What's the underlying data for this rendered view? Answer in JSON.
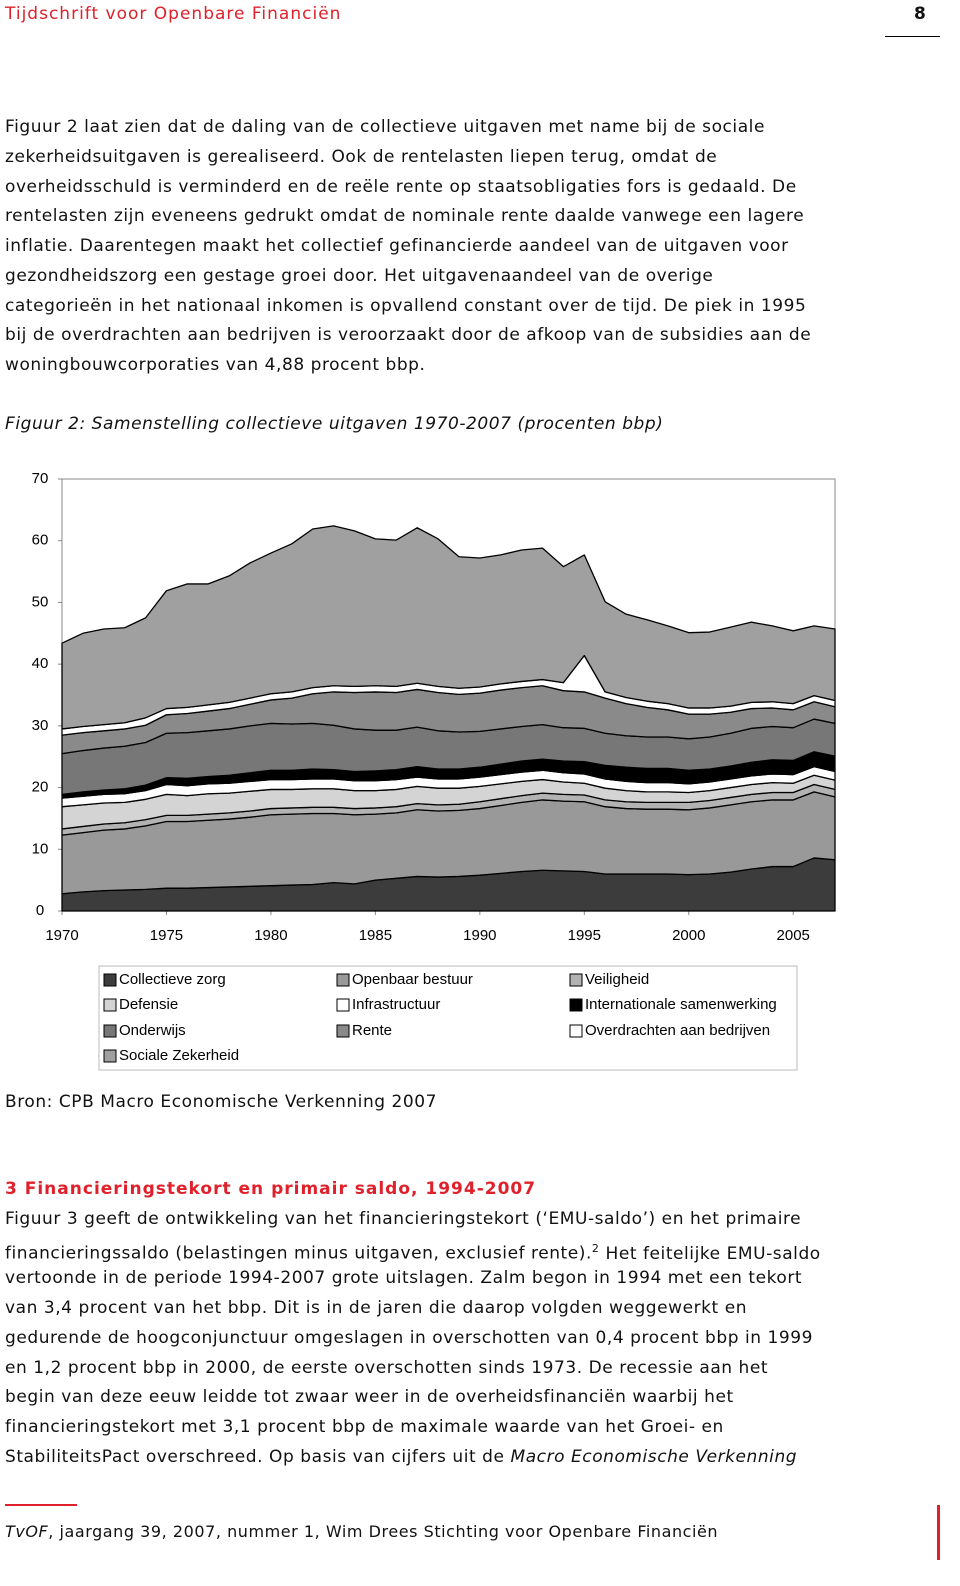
{
  "header": {
    "title": "Tijdschrift voor Openbare Financiën",
    "page": "8"
  },
  "paragraphs": [
    {
      "lines": [
        "Figuur 2 laat zien dat de daling van de collectieve uitgaven met name bij de sociale",
        "zekerheidsuitgaven is gerealiseerd. Ook de rentelasten liepen terug, omdat de",
        "overheidsschuld is verminderd en de reële rente op staatsobligaties fors is gedaald. De",
        "rentelasten zijn eveneens gedrukt omdat de nominale rente daalde vanwege een lagere",
        "inflatie. Daarentegen maakt het collectief gefinancierde aandeel van de uitgaven voor",
        "gezondheidszorg een gestage groei door. Het uitgavenaandeel van de overige",
        "categorieën in het nationaal inkomen is opvallend constant over de tijd. De piek in 1995",
        "bij de overdrachten aan bedrijven is veroorzaakt door de afkoop van de subsidies aan de",
        "woningbouwcorporaties van 4,88 procent bbp."
      ]
    }
  ],
  "figure": {
    "caption": "Figuur 2: Samenstelling collectieve uitgaven 1970-2007 (procenten bbp)",
    "source": "Bron: CPB Macro Economische Verkenning 2007"
  },
  "section": {
    "heading": "3 Financieringstekort en primair saldo, 1994-2007",
    "lines": [
      "Figuur 3 geeft de ontwikkeling van het financieringstekort (‘EMU-saldo’) en het primaire",
      [
        "financieringssaldo (belastingen minus uitgaven, exclusief rente).",
        "2",
        "Het feitelijke EMU-saldo"
      ],
      "vertoonde in de periode 1994-2007 grote uitslagen. Zalm begon in 1994 met een tekort",
      "van 3,4 procent van het bbp. Dit is in de jaren die daarop volgden weggewerkt en",
      "gedurende de hoogconjunctuur omgeslagen in overschotten van 0,4 procent bbp in 1999",
      "en 1,2 procent bbp in 2000, de eerste overschotten sinds 1973. De recessie aan het",
      "begin van deze eeuw leidde tot zwaar weer in de overheidsfinanciën waarbij het",
      "financieringstekort met 3,1 procent bbp de maximale waarde van het Groei- en",
      [
        "StabiliteitsPact overschreed. Op basis van cijfers uit de",
        "Macro Economische Verkenning"
      ]
    ]
  },
  "footer": [
    "TvOF",
    ", jaargang 39, 2007, nummer 1, Wim Drees Stichting voor Openbare Financiën"
  ],
  "chart_data": {
    "type": "stacked-area",
    "x": [
      1970,
      1971,
      1972,
      1973,
      1974,
      1975,
      1976,
      1977,
      1978,
      1979,
      1980,
      1981,
      1982,
      1983,
      1984,
      1985,
      1986,
      1987,
      1988,
      1989,
      1990,
      1991,
      1992,
      1993,
      1994,
      1995,
      1996,
      1997,
      1998,
      1999,
      2000,
      2001,
      2002,
      2003,
      2004,
      2005,
      2006,
      2007
    ],
    "xlim": [
      1970,
      2007
    ],
    "xticks": [
      1970,
      1975,
      1980,
      1985,
      1990,
      1995,
      2000,
      2005
    ],
    "ylim": [
      0,
      70
    ],
    "yticks": [
      0,
      10,
      20,
      30,
      40,
      50,
      60,
      70
    ],
    "series": [
      {
        "name": "Collectieve zorg",
        "color": "#3c3c3c",
        "values": [
          2.8,
          3.1,
          3.3,
          3.4,
          3.5,
          3.7,
          3.7,
          3.8,
          3.9,
          4.0,
          4.1,
          4.2,
          4.3,
          4.6,
          4.4,
          5.0,
          5.3,
          5.6,
          5.5,
          5.6,
          5.8,
          6.1,
          6.4,
          6.6,
          6.5,
          6.4,
          6.0,
          6.0,
          6.0,
          6.0,
          5.9,
          6.0,
          6.3,
          6.8,
          7.2,
          7.2,
          8.6,
          8.3
        ]
      },
      {
        "name": "Openbaar bestuur",
        "color": "#999999",
        "values": [
          9.5,
          9.6,
          9.8,
          9.9,
          10.3,
          10.8,
          10.8,
          10.9,
          11.0,
          11.2,
          11.5,
          11.5,
          11.5,
          11.2,
          11.2,
          10.7,
          10.6,
          10.8,
          10.7,
          10.7,
          10.8,
          11.0,
          11.2,
          11.4,
          11.3,
          11.3,
          10.9,
          10.6,
          10.5,
          10.5,
          10.5,
          10.7,
          10.9,
          10.9,
          10.8,
          10.8,
          10.7,
          10.2
        ]
      },
      {
        "name": "Veiligheid",
        "color": "#b3b3b3",
        "values": [
          1.0,
          1.0,
          1.0,
          1.0,
          1.0,
          1.0,
          1.0,
          1.0,
          1.0,
          1.0,
          1.0,
          1.0,
          1.0,
          1.0,
          1.0,
          1.0,
          1.0,
          1.0,
          1.0,
          1.0,
          1.1,
          1.1,
          1.1,
          1.1,
          1.1,
          1.1,
          1.1,
          1.1,
          1.1,
          1.1,
          1.2,
          1.2,
          1.2,
          1.2,
          1.2,
          1.2,
          1.2,
          1.2
        ]
      },
      {
        "name": "Defensie",
        "color": "#d4d4d4",
        "values": [
          3.6,
          3.5,
          3.4,
          3.3,
          3.3,
          3.4,
          3.2,
          3.3,
          3.2,
          3.2,
          3.1,
          3.0,
          3.0,
          3.0,
          2.9,
          2.8,
          2.8,
          2.8,
          2.7,
          2.6,
          2.5,
          2.4,
          2.3,
          2.2,
          2.0,
          1.9,
          1.9,
          1.8,
          1.7,
          1.7,
          1.6,
          1.6,
          1.6,
          1.6,
          1.6,
          1.5,
          1.5,
          1.5
        ]
      },
      {
        "name": "Infrastructuur",
        "color": "#ffffff",
        "values": [
          1.4,
          1.4,
          1.4,
          1.4,
          1.4,
          1.6,
          1.6,
          1.6,
          1.6,
          1.6,
          1.6,
          1.6,
          1.6,
          1.6,
          1.6,
          1.6,
          1.6,
          1.5,
          1.5,
          1.5,
          1.5,
          1.5,
          1.5,
          1.5,
          1.5,
          1.5,
          1.5,
          1.5,
          1.5,
          1.5,
          1.4,
          1.4,
          1.4,
          1.4,
          1.4,
          1.4,
          1.4,
          1.4
        ]
      },
      {
        "name": "Internationale samenwerking",
        "color": "#000000",
        "values": [
          0.6,
          0.7,
          0.7,
          0.8,
          0.9,
          1.1,
          1.2,
          1.2,
          1.3,
          1.4,
          1.5,
          1.5,
          1.6,
          1.5,
          1.5,
          1.6,
          1.6,
          1.7,
          1.6,
          1.6,
          1.6,
          1.7,
          1.8,
          1.8,
          1.9,
          2.0,
          2.2,
          2.3,
          2.3,
          2.3,
          2.2,
          2.1,
          2.1,
          2.2,
          2.3,
          2.3,
          2.4,
          2.5
        ]
      },
      {
        "name": "Onderwijs",
        "color": "#777777",
        "values": [
          6.6,
          6.7,
          6.8,
          6.9,
          6.9,
          7.2,
          7.4,
          7.4,
          7.5,
          7.6,
          7.6,
          7.5,
          7.4,
          7.2,
          6.9,
          6.6,
          6.4,
          6.4,
          6.2,
          6.0,
          5.8,
          5.7,
          5.6,
          5.6,
          5.4,
          5.4,
          5.2,
          5.1,
          5.1,
          5.1,
          5.1,
          5.2,
          5.3,
          5.5,
          5.4,
          5.3,
          5.3,
          5.3
        ]
      },
      {
        "name": "Rente",
        "color": "#8a8a8a",
        "values": [
          3.0,
          2.9,
          2.8,
          2.8,
          2.8,
          3.0,
          3.1,
          3.2,
          3.3,
          3.5,
          3.8,
          4.2,
          4.8,
          5.4,
          5.9,
          6.2,
          6.1,
          6.1,
          6.2,
          6.1,
          6.2,
          6.3,
          6.3,
          6.3,
          6.0,
          5.9,
          5.7,
          5.2,
          4.8,
          4.4,
          4.0,
          3.7,
          3.4,
          3.2,
          3.0,
          2.9,
          2.8,
          2.7
        ]
      },
      {
        "name": "Overdrachten aan bedrijven",
        "color": "#ffffff",
        "values": [
          1.0,
          1.0,
          1.0,
          1.0,
          1.2,
          1.0,
          1.0,
          1.0,
          1.0,
          1.0,
          1.0,
          1.0,
          1.0,
          1.0,
          1.0,
          1.0,
          1.0,
          1.0,
          1.0,
          1.0,
          1.0,
          1.0,
          1.0,
          1.0,
          1.3,
          5.9,
          1.0,
          1.0,
          1.0,
          1.0,
          1.0,
          1.0,
          1.0,
          1.0,
          1.0,
          1.0,
          1.0,
          1.0
        ]
      },
      {
        "name": "Sociale Zekerheid",
        "color": "#a0a0a0",
        "values": [
          13.9,
          15.1,
          15.5,
          15.4,
          16.2,
          19.1,
          20.0,
          19.6,
          20.5,
          21.9,
          22.8,
          24.0,
          25.7,
          25.9,
          25.2,
          23.8,
          23.7,
          25.2,
          23.9,
          21.3,
          20.9,
          20.9,
          21.3,
          21.3,
          18.8,
          16.3,
          14.6,
          13.5,
          13.2,
          12.6,
          12.2,
          12.3,
          12.8,
          13.0,
          12.3,
          11.8,
          11.3,
          11.6
        ]
      }
    ]
  }
}
